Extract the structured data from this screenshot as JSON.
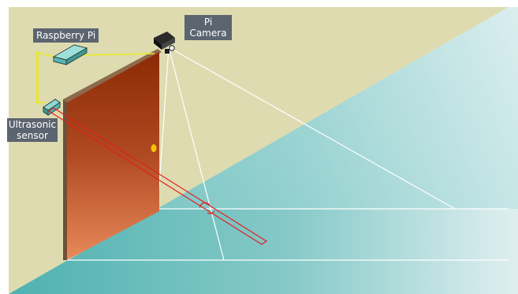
{
  "labels": {
    "raspberry_pi": "Raspberry Pi",
    "pi_camera_line1": "Pi",
    "pi_camera_line2": "Camera",
    "ultrasonic_line1": "Ultrasonic",
    "ultrasonic_line2": "sensor"
  },
  "colors": {
    "wall": "#dedbb0",
    "floor": "#7cc6c6",
    "door": "#b8512c",
    "door_frame": "#8e6a4c",
    "doorknob": "#f5c400",
    "wire": "#eaea22",
    "board": "#7ccfc7",
    "sensor_beam": "#e02020",
    "camera_lines": "#ffffff",
    "camera": "#1d1d1d"
  },
  "icons": {
    "raspberry_pi": "circuit-board-icon",
    "camera": "security-camera-icon",
    "sensor": "ultrasonic-sensor-icon"
  }
}
